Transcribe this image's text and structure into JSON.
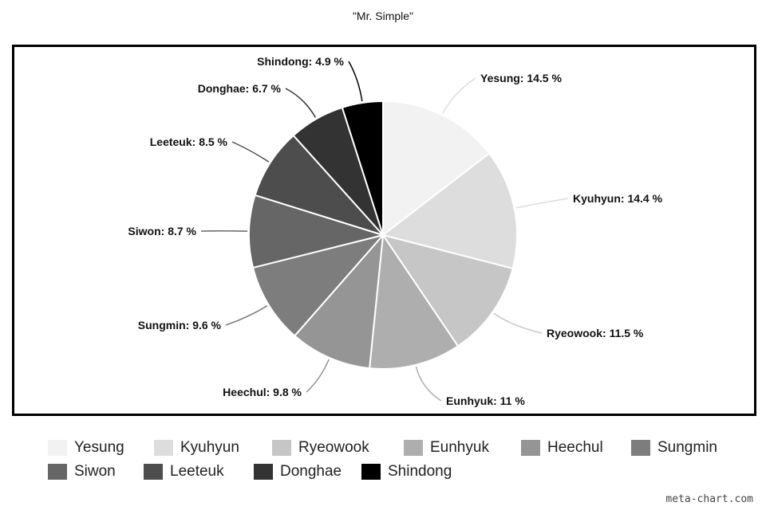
{
  "chart_data": {
    "type": "pie",
    "title": "\"Mr. Simple\"",
    "slices": [
      {
        "name": "Yesung",
        "value": 14.5,
        "label": "Yesung: 14.5 %",
        "color": "#f2f2f2"
      },
      {
        "name": "Kyuhyun",
        "value": 14.4,
        "label": "Kyuhyun: 14.4 %",
        "color": "#dddddd"
      },
      {
        "name": "Ryeowook",
        "value": 11.5,
        "label": "Ryeowook: 11.5 %",
        "color": "#c6c6c6"
      },
      {
        "name": "Eunhyuk",
        "value": 11,
        "label": "Eunhyuk: 11 %",
        "color": "#aeaeae"
      },
      {
        "name": "Heechul",
        "value": 9.8,
        "label": "Heechul: 9.8 %",
        "color": "#959595"
      },
      {
        "name": "Sungmin",
        "value": 9.6,
        "label": "Sungmin: 9.6 %",
        "color": "#7d7d7d"
      },
      {
        "name": "Siwon",
        "value": 8.7,
        "label": "Siwon: 8.7 %",
        "color": "#666666"
      },
      {
        "name": "Leeteuk",
        "value": 8.5,
        "label": "Leeteuk: 8.5 %",
        "color": "#4d4d4d"
      },
      {
        "name": "Donghae",
        "value": 6.7,
        "label": "Donghae: 6.7 %",
        "color": "#333333"
      },
      {
        "name": "Shindong",
        "value": 4.9,
        "label": "Shindong: 4.9 %",
        "color": "#000000"
      }
    ],
    "legend_position": "bottom"
  },
  "watermark": "meta-chart.com"
}
